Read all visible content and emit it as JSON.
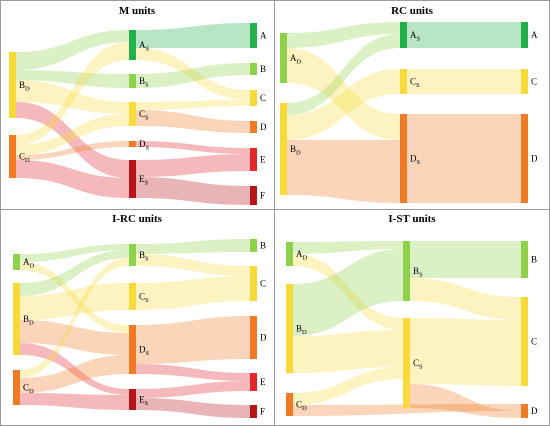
{
  "panels": [
    {
      "id": "m-units",
      "title": "M units",
      "colors": {
        "A": "#22b14c",
        "B": "#8ed14a",
        "C": "#f7d93a",
        "D": "#f07b24",
        "E": "#e3262a",
        "F": "#b8151b"
      },
      "nodes": [
        {
          "id": "BD",
          "letter": "B",
          "sub": "D",
          "col": 0,
          "color": "#f7d93a"
        },
        {
          "id": "CD",
          "letter": "C",
          "sub": "D",
          "col": 0,
          "color": "#f07b24"
        },
        {
          "id": "AS",
          "letter": "A",
          "sub": "S",
          "col": 1,
          "color": "#22b14c"
        },
        {
          "id": "BS",
          "letter": "B",
          "sub": "S",
          "col": 1,
          "color": "#8ed14a"
        },
        {
          "id": "CS",
          "letter": "C",
          "sub": "S",
          "col": 1,
          "color": "#f7d93a"
        },
        {
          "id": "DS",
          "letter": "D",
          "sub": "S",
          "col": 1,
          "color": "#f07b24"
        },
        {
          "id": "ES",
          "letter": "E",
          "sub": "S",
          "col": 1,
          "color": "#b8151b"
        },
        {
          "id": "A",
          "letter": "A",
          "sub": "",
          "col": 2,
          "color": "#22b14c"
        },
        {
          "id": "B",
          "letter": "B",
          "sub": "",
          "col": 2,
          "color": "#8ed14a"
        },
        {
          "id": "C",
          "letter": "C",
          "sub": "",
          "col": 2,
          "color": "#f7d93a"
        },
        {
          "id": "D",
          "letter": "D",
          "sub": "",
          "col": 2,
          "color": "#f07b24"
        },
        {
          "id": "E",
          "letter": "E",
          "sub": "",
          "col": 2,
          "color": "#e3262a"
        },
        {
          "id": "F",
          "letter": "F",
          "sub": "",
          "col": 2,
          "color": "#b8151b"
        }
      ]
    },
    {
      "id": "rc-units",
      "title": "RC units",
      "nodes": [
        {
          "id": "AD",
          "letter": "A",
          "sub": "D",
          "col": 0,
          "color": "#8ed14a"
        },
        {
          "id": "BD",
          "letter": "B",
          "sub": "D",
          "col": 0,
          "color": "#f7d93a"
        },
        {
          "id": "AS",
          "letter": "A",
          "sub": "S",
          "col": 1,
          "color": "#22b14c"
        },
        {
          "id": "CS",
          "letter": "C",
          "sub": "S",
          "col": 1,
          "color": "#f7d93a"
        },
        {
          "id": "DS",
          "letter": "D",
          "sub": "S",
          "col": 1,
          "color": "#f07b24"
        },
        {
          "id": "A",
          "letter": "A",
          "sub": "",
          "col": 2,
          "color": "#22b14c"
        },
        {
          "id": "C",
          "letter": "C",
          "sub": "",
          "col": 2,
          "color": "#f7d93a"
        },
        {
          "id": "D",
          "letter": "D",
          "sub": "",
          "col": 2,
          "color": "#f07b24"
        }
      ]
    },
    {
      "id": "i-rc-units",
      "title": "I-RC units",
      "nodes": [
        {
          "id": "AD",
          "letter": "A",
          "sub": "D",
          "col": 0,
          "color": "#8ed14a"
        },
        {
          "id": "BD",
          "letter": "B",
          "sub": "D",
          "col": 0,
          "color": "#f7d93a"
        },
        {
          "id": "CD",
          "letter": "C",
          "sub": "D",
          "col": 0,
          "color": "#f07b24"
        },
        {
          "id": "BS",
          "letter": "B",
          "sub": "S",
          "col": 1,
          "color": "#8ed14a"
        },
        {
          "id": "CS",
          "letter": "C",
          "sub": "S",
          "col": 1,
          "color": "#f7d93a"
        },
        {
          "id": "DS",
          "letter": "D",
          "sub": "S",
          "col": 1,
          "color": "#f07b24"
        },
        {
          "id": "ES",
          "letter": "E",
          "sub": "S",
          "col": 1,
          "color": "#b8151b"
        },
        {
          "id": "B",
          "letter": "B",
          "sub": "",
          "col": 2,
          "color": "#8ed14a"
        },
        {
          "id": "C",
          "letter": "C",
          "sub": "",
          "col": 2,
          "color": "#f7d93a"
        },
        {
          "id": "D",
          "letter": "D",
          "sub": "",
          "col": 2,
          "color": "#f07b24"
        },
        {
          "id": "E",
          "letter": "E",
          "sub": "",
          "col": 2,
          "color": "#e3262a"
        },
        {
          "id": "F",
          "letter": "F",
          "sub": "",
          "col": 2,
          "color": "#b8151b"
        }
      ]
    },
    {
      "id": "i-st-units",
      "title": "I-ST units",
      "nodes": [
        {
          "id": "AD",
          "letter": "A",
          "sub": "D",
          "col": 0,
          "color": "#8ed14a"
        },
        {
          "id": "BD",
          "letter": "B",
          "sub": "D",
          "col": 0,
          "color": "#f7d93a"
        },
        {
          "id": "CD",
          "letter": "C",
          "sub": "D",
          "col": 0,
          "color": "#f07b24"
        },
        {
          "id": "BS",
          "letter": "B",
          "sub": "S",
          "col": 1,
          "color": "#8ed14a"
        },
        {
          "id": "CS",
          "letter": "C",
          "sub": "S",
          "col": 1,
          "color": "#f7d93a"
        },
        {
          "id": "B",
          "letter": "B",
          "sub": "",
          "col": 2,
          "color": "#8ed14a"
        },
        {
          "id": "C",
          "letter": "C",
          "sub": "",
          "col": 2,
          "color": "#f7d93a"
        },
        {
          "id": "D",
          "letter": "D",
          "sub": "",
          "col": 2,
          "color": "#f07b24"
        }
      ]
    }
  ],
  "links": {
    "m-units": [
      {
        "from": "BD",
        "to": "AS",
        "color": "#8ed14a"
      },
      {
        "from": "BD",
        "to": "BS",
        "color": "#8ed14a"
      },
      {
        "from": "BD",
        "to": "CS",
        "color": "#f7d93a"
      },
      {
        "from": "BD",
        "to": "ES",
        "color": "#e3262a"
      },
      {
        "from": "CD",
        "to": "AS",
        "color": "#f7d93a"
      },
      {
        "from": "CD",
        "to": "CS",
        "color": "#f7d93a"
      },
      {
        "from": "CD",
        "to": "DS",
        "color": "#f07b24"
      },
      {
        "from": "CD",
        "to": "ES",
        "color": "#e3262a"
      },
      {
        "from": "AS",
        "to": "A",
        "color": "#22b14c"
      },
      {
        "from": "AS",
        "to": "C",
        "color": "#f7d93a"
      },
      {
        "from": "BS",
        "to": "B",
        "color": "#8ed14a"
      },
      {
        "from": "CS",
        "to": "C",
        "color": "#f7d93a"
      },
      {
        "from": "CS",
        "to": "D",
        "color": "#f07b24"
      },
      {
        "from": "DS",
        "to": "E",
        "color": "#e3262a"
      },
      {
        "from": "ES",
        "to": "E",
        "color": "#e3262a"
      },
      {
        "from": "ES",
        "to": "F",
        "color": "#b8151b"
      }
    ],
    "rc-units": [
      {
        "from": "AD",
        "to": "AS",
        "color": "#8ed14a"
      },
      {
        "from": "AD",
        "to": "DS",
        "color": "#f7d93a"
      },
      {
        "from": "BD",
        "to": "AS",
        "color": "#8ed14a"
      },
      {
        "from": "BD",
        "to": "CS",
        "color": "#f7d93a"
      },
      {
        "from": "BD",
        "to": "DS",
        "color": "#f07b24"
      },
      {
        "from": "AS",
        "to": "A",
        "color": "#22b14c"
      },
      {
        "from": "CS",
        "to": "C",
        "color": "#f7d93a"
      },
      {
        "from": "DS",
        "to": "D",
        "color": "#f07b24"
      }
    ],
    "i-rc-units": [
      {
        "from": "AD",
        "to": "BS",
        "color": "#8ed14a"
      },
      {
        "from": "AD",
        "to": "DS",
        "color": "#f7d93a"
      },
      {
        "from": "BD",
        "to": "BS",
        "color": "#8ed14a"
      },
      {
        "from": "BD",
        "to": "CS",
        "color": "#f7d93a"
      },
      {
        "from": "BD",
        "to": "DS",
        "color": "#f07b24"
      },
      {
        "from": "BD",
        "to": "ES",
        "color": "#e3262a"
      },
      {
        "from": "CD",
        "to": "BS",
        "color": "#f7d93a"
      },
      {
        "from": "CD",
        "to": "DS",
        "color": "#f07b24"
      },
      {
        "from": "CD",
        "to": "ES",
        "color": "#e3262a"
      },
      {
        "from": "BS",
        "to": "B",
        "color": "#8ed14a"
      },
      {
        "from": "BS",
        "to": "C",
        "color": "#f7d93a"
      },
      {
        "from": "CS",
        "to": "C",
        "color": "#f7d93a"
      },
      {
        "from": "DS",
        "to": "D",
        "color": "#f07b24"
      },
      {
        "from": "DS",
        "to": "E",
        "color": "#e3262a"
      },
      {
        "from": "ES",
        "to": "E",
        "color": "#e3262a"
      },
      {
        "from": "ES",
        "to": "F",
        "color": "#b8151b"
      }
    ],
    "i-st-units": [
      {
        "from": "AD",
        "to": "BS",
        "color": "#8ed14a"
      },
      {
        "from": "AD",
        "to": "CS",
        "color": "#f7d93a"
      },
      {
        "from": "BD",
        "to": "BS",
        "color": "#8ed14a"
      },
      {
        "from": "BD",
        "to": "CS",
        "color": "#f7d93a"
      },
      {
        "from": "CD",
        "to": "CS",
        "color": "#f7d93a"
      },
      {
        "from": "CD",
        "to": "D",
        "color": "#f07b24"
      },
      {
        "from": "BS",
        "to": "B",
        "color": "#8ed14a"
      },
      {
        "from": "BS",
        "to": "C",
        "color": "#f7d93a"
      },
      {
        "from": "CS",
        "to": "C",
        "color": "#f7d93a"
      },
      {
        "from": "CS",
        "to": "D",
        "color": "#f07b24"
      }
    ]
  }
}
